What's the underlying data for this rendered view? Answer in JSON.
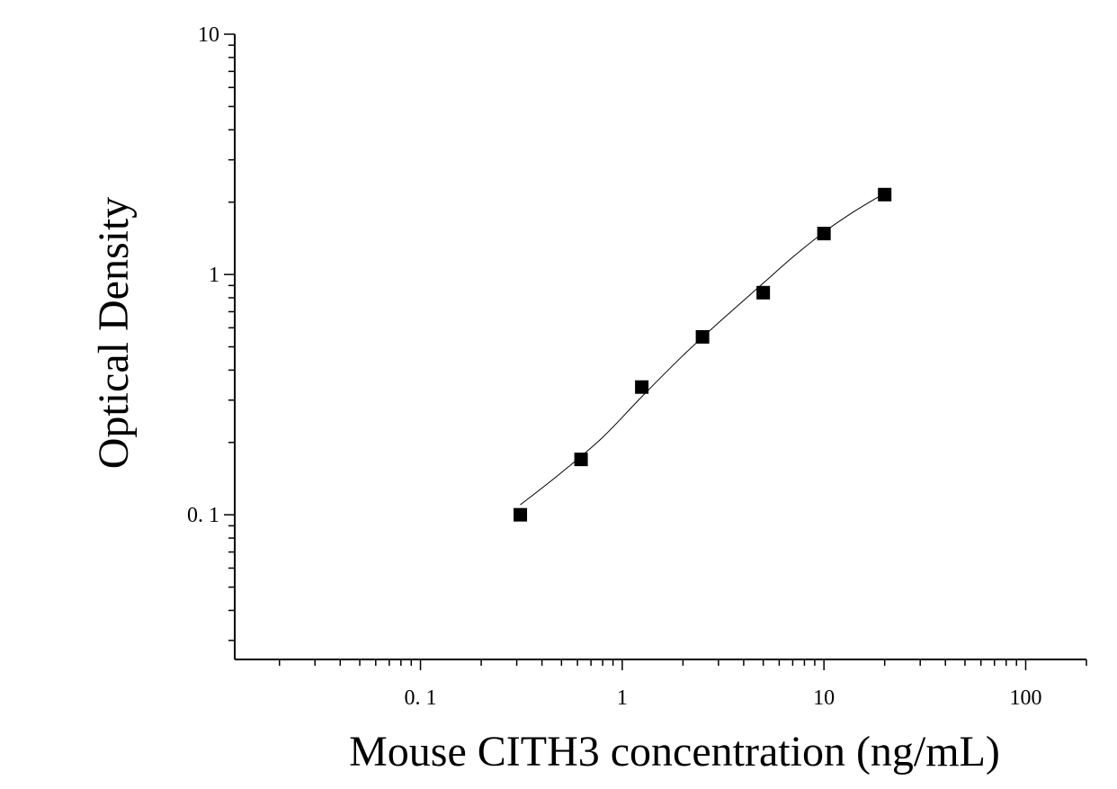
{
  "chart_data": {
    "type": "scatter",
    "title": "",
    "xlabel": "Mouse CITH3 concentration (ng/mL)",
    "ylabel": "Optical Density",
    "x_scale": "log",
    "y_scale": "log",
    "xlim": [
      0.012,
      200
    ],
    "ylim": [
      0.025,
      10
    ],
    "x_ticks": [
      {
        "value": 0.1,
        "label": "0. 1"
      },
      {
        "value": 1,
        "label": "1"
      },
      {
        "value": 10,
        "label": "10"
      },
      {
        "value": 100,
        "label": "100"
      }
    ],
    "y_ticks": [
      {
        "value": 0.1,
        "label": "0. 1"
      },
      {
        "value": 1,
        "label": "1"
      },
      {
        "value": 10,
        "label": "10"
      }
    ],
    "grid": false,
    "legend": "none",
    "series": [
      {
        "x": [
          0.3125,
          0.625,
          1.25,
          2.5,
          5,
          10,
          20
        ],
        "y": [
          0.1,
          0.17,
          0.34,
          0.55,
          0.84,
          1.48,
          2.15
        ],
        "marker": "square",
        "color": "#000000"
      }
    ],
    "fit_curve": {
      "x": [
        0.3125,
        0.5,
        0.8,
        1.25,
        2.0,
        3.0,
        5.0,
        7.0,
        10.0,
        14.0,
        20.0
      ],
      "y": [
        0.11,
        0.15,
        0.21,
        0.31,
        0.46,
        0.63,
        0.92,
        1.18,
        1.5,
        1.82,
        2.18
      ],
      "color": "#000000"
    }
  }
}
